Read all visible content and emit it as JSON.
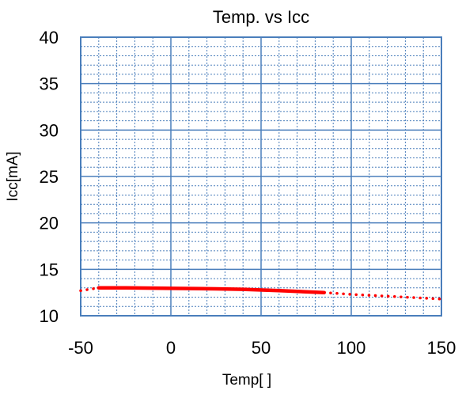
{
  "chart_data": {
    "type": "line",
    "title": "Temp. vs Icc",
    "xlabel": "Temp[ ]",
    "ylabel": "Icc[mA]",
    "xlim": [
      -50,
      150
    ],
    "ylim": [
      10,
      40
    ],
    "x_major_step": 50,
    "x_minor_step": 10,
    "y_major_step": 5,
    "y_minor_step": 1,
    "x_ticks": [
      "-50",
      "0",
      "50",
      "100",
      "150"
    ],
    "y_ticks": [
      "10",
      "15",
      "20",
      "25",
      "30",
      "35",
      "40"
    ],
    "grid": true,
    "colors": {
      "series": "#ff0000",
      "grid": "#4a7ebb",
      "axis": "#000000"
    },
    "series": [
      {
        "style": "solid",
        "x": [
          -40,
          -25,
          0,
          25,
          40,
          60,
          85
        ],
        "y": [
          13.0,
          13.0,
          12.95,
          12.9,
          12.85,
          12.7,
          12.5
        ]
      },
      {
        "style": "dotted",
        "x": [
          -50,
          -40
        ],
        "y": [
          12.7,
          13.0
        ]
      },
      {
        "style": "dotted",
        "x": [
          85,
          100,
          125,
          150
        ],
        "y": [
          12.5,
          12.3,
          12.05,
          11.8
        ]
      }
    ]
  }
}
